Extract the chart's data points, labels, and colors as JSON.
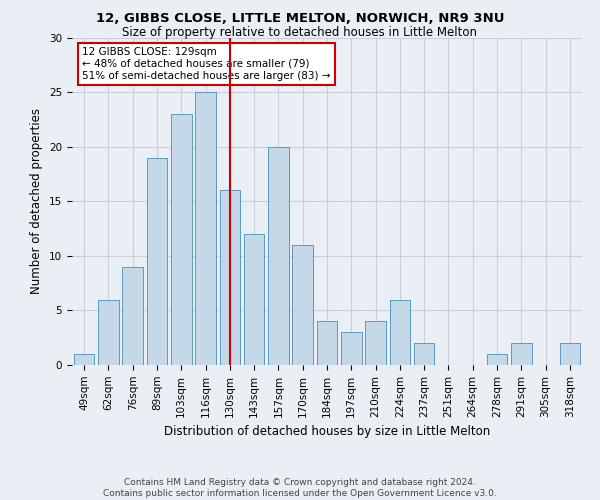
{
  "title1": "12, GIBBS CLOSE, LITTLE MELTON, NORWICH, NR9 3NU",
  "title2": "Size of property relative to detached houses in Little Melton",
  "xlabel": "Distribution of detached houses by size in Little Melton",
  "ylabel": "Number of detached properties",
  "footer1": "Contains HM Land Registry data © Crown copyright and database right 2024.",
  "footer2": "Contains public sector information licensed under the Open Government Licence v3.0.",
  "annotation_title": "12 GIBBS CLOSE: 129sqm",
  "annotation_line1": "← 48% of detached houses are smaller (79)",
  "annotation_line2": "51% of semi-detached houses are larger (83) →",
  "bar_labels": [
    "49sqm",
    "62sqm",
    "76sqm",
    "89sqm",
    "103sqm",
    "116sqm",
    "130sqm",
    "143sqm",
    "157sqm",
    "170sqm",
    "184sqm",
    "197sqm",
    "210sqm",
    "224sqm",
    "237sqm",
    "251sqm",
    "264sqm",
    "278sqm",
    "291sqm",
    "305sqm",
    "318sqm"
  ],
  "bar_values": [
    1,
    6,
    9,
    19,
    23,
    25,
    16,
    12,
    20,
    11,
    4,
    3,
    4,
    6,
    2,
    0,
    0,
    1,
    2,
    0,
    2
  ],
  "bar_color": "#c5d8e8",
  "bar_edge_color": "#5a9abf",
  "vline_x_idx": 6,
  "vline_color": "#cc0000",
  "ylim": [
    0,
    30
  ],
  "yticks": [
    0,
    5,
    10,
    15,
    20,
    25,
    30
  ],
  "grid_color": "#c8cfd8",
  "bg_color": "#eaeff5",
  "annotation_box_color": "#ffffff",
  "annotation_box_edge": "#cc0000",
  "title1_fontsize": 9.5,
  "title2_fontsize": 8.5,
  "ylabel_fontsize": 8.5,
  "xlabel_fontsize": 8.5,
  "tick_fontsize": 7.5,
  "footer_fontsize": 6.5,
  "ann_fontsize": 7.5
}
